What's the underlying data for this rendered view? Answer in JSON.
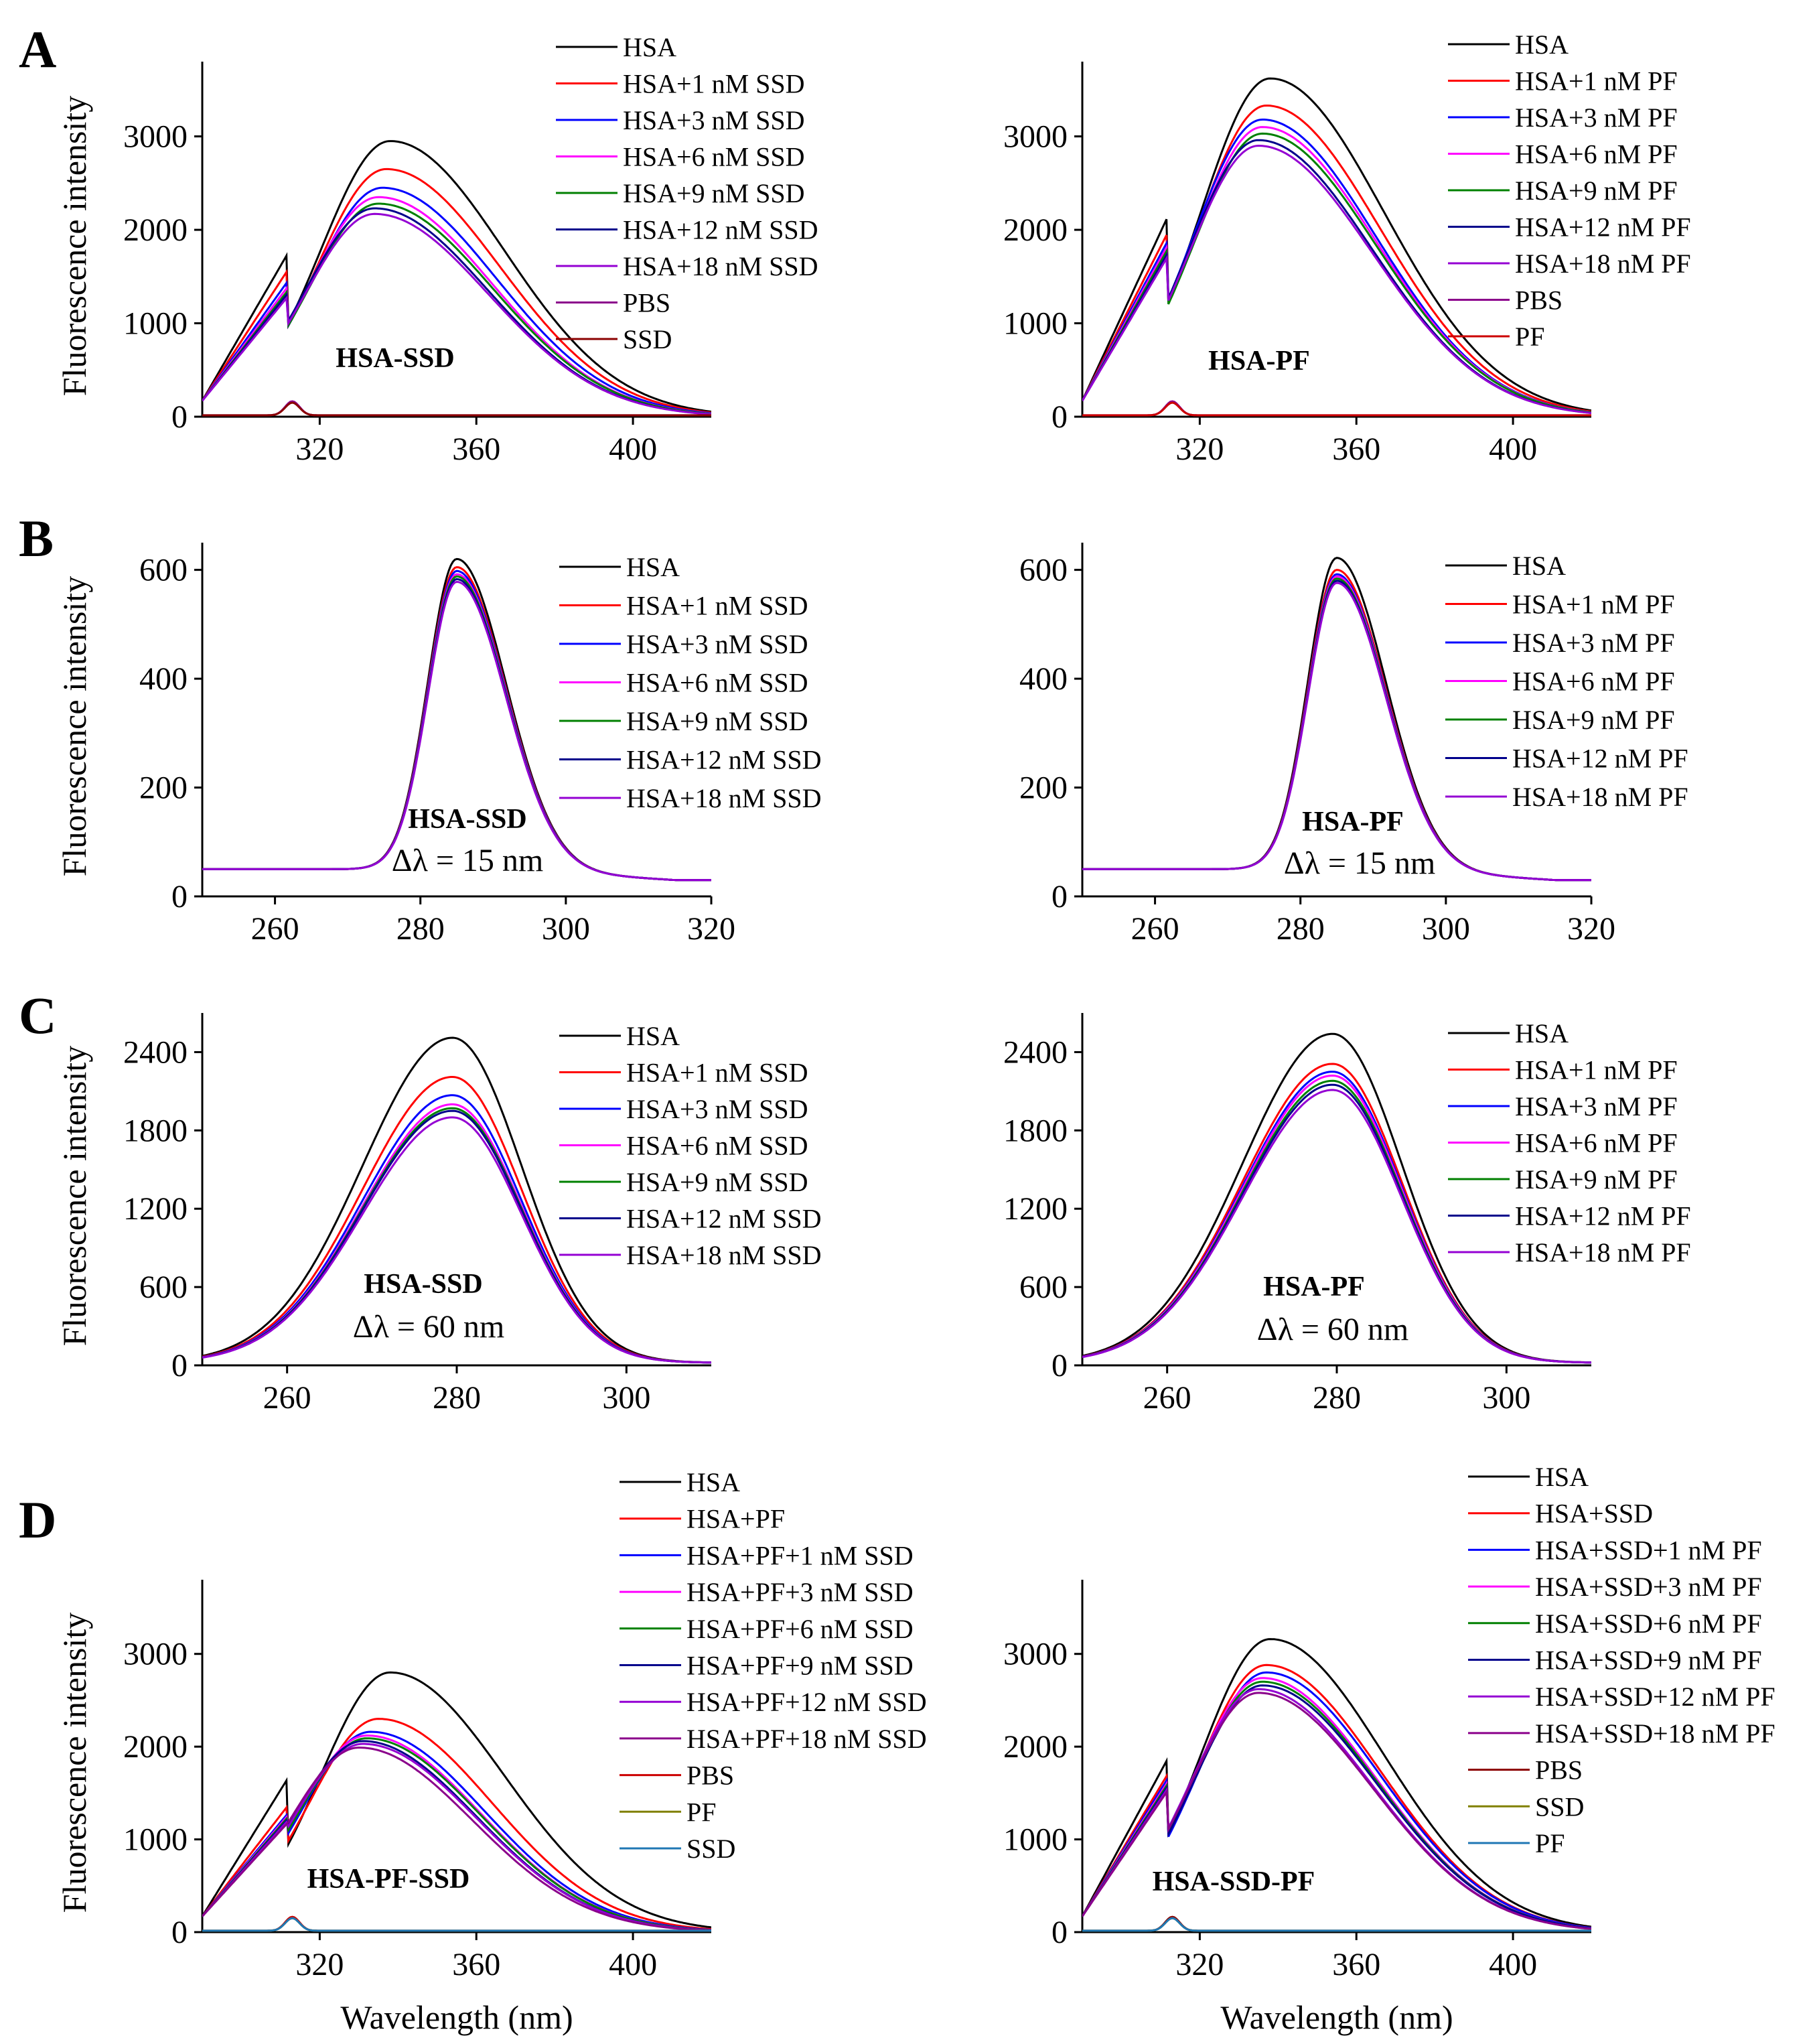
{
  "colors": {
    "black": "#000000",
    "red": "#ff0000",
    "blue": "#0000ff",
    "magenta": "#ff00ff",
    "green": "#008000",
    "navy": "#00008b",
    "violet": "#9400d3",
    "purple": "#8b008b",
    "darkred": "#8b0000",
    "crimson": "#cc0000",
    "olive": "#808000",
    "steelblue": "#1f77b4"
  },
  "chart_data": [
    {
      "id": "A1",
      "panel_letter": "A",
      "type": "line",
      "ylabel": "Fluorescence intensity",
      "xlabel": "",
      "xlim": [
        290,
        420
      ],
      "ylim": [
        0,
        3800
      ],
      "xticks": [
        320,
        360,
        400
      ],
      "yticks": [
        0,
        1000,
        2000,
        3000
      ],
      "annotation": "HSA-SSD",
      "annotation2": "",
      "series": [
        {
          "name": "HSA",
          "color": "black",
          "kind": "hsa_em",
          "peak": 2950,
          "peak_x": 338
        },
        {
          "name": "HSA+1 nM SSD",
          "color": "red",
          "kind": "hsa_em",
          "peak": 2650,
          "peak_x": 337
        },
        {
          "name": "HSA+3 nM SSD",
          "color": "blue",
          "kind": "hsa_em",
          "peak": 2450,
          "peak_x": 336
        },
        {
          "name": "HSA+6 nM SSD",
          "color": "magenta",
          "kind": "hsa_em",
          "peak": 2350,
          "peak_x": 335
        },
        {
          "name": "HSA+9 nM SSD",
          "color": "green",
          "kind": "hsa_em",
          "peak": 2280,
          "peak_x": 335
        },
        {
          "name": "HSA+12 nM SSD",
          "color": "navy",
          "kind": "hsa_em",
          "peak": 2230,
          "peak_x": 334
        },
        {
          "name": "HSA+18 nM SSD",
          "color": "violet",
          "kind": "hsa_em",
          "peak": 2170,
          "peak_x": 334
        },
        {
          "name": "PBS",
          "color": "purple",
          "kind": "buffer"
        },
        {
          "name": "SSD",
          "color": "darkred",
          "kind": "buffer"
        }
      ]
    },
    {
      "id": "A2",
      "panel_letter": "",
      "type": "line",
      "ylabel": "",
      "xlabel": "",
      "xlim": [
        290,
        420
      ],
      "ylim": [
        0,
        3800
      ],
      "xticks": [
        320,
        360,
        400
      ],
      "yticks": [
        0,
        1000,
        2000,
        3000
      ],
      "annotation": "HSA-PF",
      "annotation2": "",
      "series": [
        {
          "name": "HSA",
          "color": "black",
          "kind": "hsa_em",
          "peak": 3620,
          "peak_x": 338
        },
        {
          "name": "HSA+1 nM PF",
          "color": "red",
          "kind": "hsa_em",
          "peak": 3330,
          "peak_x": 337
        },
        {
          "name": "HSA+3 nM PF",
          "color": "blue",
          "kind": "hsa_em",
          "peak": 3180,
          "peak_x": 336
        },
        {
          "name": "HSA+6 nM PF",
          "color": "magenta",
          "kind": "hsa_em",
          "peak": 3100,
          "peak_x": 336
        },
        {
          "name": "HSA+9 nM PF",
          "color": "green",
          "kind": "hsa_em",
          "peak": 3030,
          "peak_x": 336
        },
        {
          "name": "HSA+12 nM PF",
          "color": "navy",
          "kind": "hsa_em",
          "peak": 2960,
          "peak_x": 335
        },
        {
          "name": "HSA+18 nM PF",
          "color": "violet",
          "kind": "hsa_em",
          "peak": 2900,
          "peak_x": 335
        },
        {
          "name": "PBS",
          "color": "purple",
          "kind": "buffer"
        },
        {
          "name": "PF",
          "color": "crimson",
          "kind": "buffer"
        }
      ]
    },
    {
      "id": "B1",
      "panel_letter": "B",
      "type": "line",
      "ylabel": "Fluorescence intensity",
      "xlabel": "",
      "xlim": [
        250,
        320
      ],
      "ylim": [
        0,
        650
      ],
      "xticks": [
        260,
        280,
        300,
        320
      ],
      "yticks": [
        0,
        200,
        400,
        600
      ],
      "annotation": "HSA-SSD",
      "annotation2": "Δλ = 15 nm",
      "series": [
        {
          "name": "HSA",
          "color": "black",
          "kind": "sync15",
          "peak": 620
        },
        {
          "name": "HSA+1 nM SSD",
          "color": "red",
          "kind": "sync15",
          "peak": 605
        },
        {
          "name": "HSA+3 nM SSD",
          "color": "blue",
          "kind": "sync15",
          "peak": 598
        },
        {
          "name": "HSA+6 nM SSD",
          "color": "magenta",
          "kind": "sync15",
          "peak": 592
        },
        {
          "name": "HSA+9 nM SSD",
          "color": "green",
          "kind": "sync15",
          "peak": 588
        },
        {
          "name": "HSA+12 nM SSD",
          "color": "navy",
          "kind": "sync15",
          "peak": 583
        },
        {
          "name": "HSA+18 nM SSD",
          "color": "violet",
          "kind": "sync15",
          "peak": 578
        }
      ]
    },
    {
      "id": "B2",
      "panel_letter": "",
      "type": "line",
      "ylabel": "",
      "xlabel": "",
      "xlim": [
        250,
        320
      ],
      "ylim": [
        0,
        650
      ],
      "xticks": [
        260,
        280,
        300,
        320
      ],
      "yticks": [
        0,
        200,
        400,
        600
      ],
      "annotation": "HSA-PF",
      "annotation2": "Δλ = 15 nm",
      "series": [
        {
          "name": "HSA",
          "color": "black",
          "kind": "sync15",
          "peak": 622
        },
        {
          "name": "HSA+1 nM PF",
          "color": "red",
          "kind": "sync15",
          "peak": 600
        },
        {
          "name": "HSA+3 nM PF",
          "color": "blue",
          "kind": "sync15",
          "peak": 592
        },
        {
          "name": "HSA+6 nM PF",
          "color": "magenta",
          "kind": "sync15",
          "peak": 588
        },
        {
          "name": "HSA+9 nM PF",
          "color": "green",
          "kind": "sync15",
          "peak": 584
        },
        {
          "name": "HSA+12 nM PF",
          "color": "navy",
          "kind": "sync15",
          "peak": 580
        },
        {
          "name": "HSA+18 nM PF",
          "color": "violet",
          "kind": "sync15",
          "peak": 576
        }
      ]
    },
    {
      "id": "C1",
      "panel_letter": "C",
      "type": "line",
      "ylabel": "Fluorescence intensity",
      "xlabel": "",
      "xlim": [
        250,
        310
      ],
      "ylim": [
        0,
        2700
      ],
      "xticks": [
        260,
        280,
        300
      ],
      "yticks": [
        0,
        600,
        1200,
        1800,
        2400
      ],
      "annotation": "HSA-SSD",
      "annotation2": "Δλ = 60 nm",
      "series": [
        {
          "name": "HSA",
          "color": "black",
          "kind": "sync60",
          "peak": 2510
        },
        {
          "name": "HSA+1 nM SSD",
          "color": "red",
          "kind": "sync60",
          "peak": 2210
        },
        {
          "name": "HSA+3 nM SSD",
          "color": "blue",
          "kind": "sync60",
          "peak": 2070
        },
        {
          "name": "HSA+6 nM SSD",
          "color": "magenta",
          "kind": "sync60",
          "peak": 2000
        },
        {
          "name": "HSA+9 nM SSD",
          "color": "green",
          "kind": "sync60",
          "peak": 1970
        },
        {
          "name": "HSA+12 nM SSD",
          "color": "navy",
          "kind": "sync60",
          "peak": 1950
        },
        {
          "name": "HSA+18 nM SSD",
          "color": "violet",
          "kind": "sync60",
          "peak": 1900
        }
      ]
    },
    {
      "id": "C2",
      "panel_letter": "",
      "type": "line",
      "ylabel": "",
      "xlabel": "",
      "xlim": [
        250,
        310
      ],
      "ylim": [
        0,
        2700
      ],
      "xticks": [
        260,
        280,
        300
      ],
      "yticks": [
        0,
        600,
        1200,
        1800,
        2400
      ],
      "annotation": "HSA-PF",
      "annotation2": "Δλ = 60 nm",
      "series": [
        {
          "name": "HSA",
          "color": "black",
          "kind": "sync60",
          "peak": 2540
        },
        {
          "name": "HSA+1 nM PF",
          "color": "red",
          "kind": "sync60",
          "peak": 2310
        },
        {
          "name": "HSA+3 nM PF",
          "color": "blue",
          "kind": "sync60",
          "peak": 2250
        },
        {
          "name": "HSA+6 nM PF",
          "color": "magenta",
          "kind": "sync60",
          "peak": 2220
        },
        {
          "name": "HSA+9 nM PF",
          "color": "green",
          "kind": "sync60",
          "peak": 2180
        },
        {
          "name": "HSA+12 nM PF",
          "color": "navy",
          "kind": "sync60",
          "peak": 2150
        },
        {
          "name": "HSA+18 nM PF",
          "color": "violet",
          "kind": "sync60",
          "peak": 2110
        }
      ]
    },
    {
      "id": "D1",
      "panel_letter": "D",
      "type": "line",
      "ylabel": "Fluorescence intensity",
      "xlabel": "Wavelength (nm)",
      "xlim": [
        290,
        420
      ],
      "ylim": [
        0,
        3800
      ],
      "xticks": [
        320,
        360,
        400
      ],
      "yticks": [
        0,
        1000,
        2000,
        3000
      ],
      "annotation": "HSA-PF-SSD",
      "annotation2": "",
      "series": [
        {
          "name": "HSA",
          "color": "black",
          "kind": "hsa_em",
          "peak": 2800,
          "peak_x": 338
        },
        {
          "name": "HSA+PF",
          "color": "red",
          "kind": "hsa_em",
          "peak": 2300,
          "peak_x": 335
        },
        {
          "name": "HSA+PF+1 nM SSD",
          "color": "blue",
          "kind": "hsa_em",
          "peak": 2160,
          "peak_x": 333
        },
        {
          "name": "HSA+PF+3 nM SSD",
          "color": "magenta",
          "kind": "hsa_em",
          "peak": 2120,
          "peak_x": 332
        },
        {
          "name": "HSA+PF+6 nM SSD",
          "color": "green",
          "kind": "hsa_em",
          "peak": 2090,
          "peak_x": 332
        },
        {
          "name": "HSA+PF+9 nM SSD",
          "color": "navy",
          "kind": "hsa_em",
          "peak": 2060,
          "peak_x": 331
        },
        {
          "name": "HSA+PF+12 nM SSD",
          "color": "violet",
          "kind": "hsa_em",
          "peak": 2030,
          "peak_x": 331
        },
        {
          "name": "HSA+PF+18 nM SSD",
          "color": "purple",
          "kind": "hsa_em",
          "peak": 1990,
          "peak_x": 330
        },
        {
          "name": "PBS",
          "color": "crimson",
          "kind": "buffer"
        },
        {
          "name": "PF",
          "color": "olive",
          "kind": "buffer"
        },
        {
          "name": "SSD",
          "color": "steelblue",
          "kind": "buffer"
        }
      ]
    },
    {
      "id": "D2",
      "panel_letter": "",
      "type": "line",
      "ylabel": "",
      "xlabel": "Wavelength (nm)",
      "xlim": [
        290,
        420
      ],
      "ylim": [
        0,
        3800
      ],
      "xticks": [
        320,
        360,
        400
      ],
      "yticks": [
        0,
        1000,
        2000,
        3000
      ],
      "annotation": "HSA-SSD-PF",
      "annotation2": "",
      "series": [
        {
          "name": "HSA",
          "color": "black",
          "kind": "hsa_em",
          "peak": 3160,
          "peak_x": 338
        },
        {
          "name": "HSA+SSD",
          "color": "red",
          "kind": "hsa_em",
          "peak": 2880,
          "peak_x": 337
        },
        {
          "name": "HSA+SSD+1 nM PF",
          "color": "blue",
          "kind": "hsa_em",
          "peak": 2800,
          "peak_x": 337
        },
        {
          "name": "HSA+SSD+3 nM PF",
          "color": "magenta",
          "kind": "hsa_em",
          "peak": 2740,
          "peak_x": 336
        },
        {
          "name": "HSA+SSD+6 nM PF",
          "color": "green",
          "kind": "hsa_em",
          "peak": 2700,
          "peak_x": 336
        },
        {
          "name": "HSA+SSD+9 nM PF",
          "color": "navy",
          "kind": "hsa_em",
          "peak": 2660,
          "peak_x": 336
        },
        {
          "name": "HSA+SSD+12 nM PF",
          "color": "violet",
          "kind": "hsa_em",
          "peak": 2620,
          "peak_x": 335
        },
        {
          "name": "HSA+SSD+18 nM PF",
          "color": "purple",
          "kind": "hsa_em",
          "peak": 2580,
          "peak_x": 335
        },
        {
          "name": "PBS",
          "color": "darkred",
          "kind": "buffer"
        },
        {
          "name": "SSD",
          "color": "olive",
          "kind": "buffer"
        },
        {
          "name": "PF",
          "color": "steelblue",
          "kind": "buffer"
        }
      ]
    }
  ]
}
